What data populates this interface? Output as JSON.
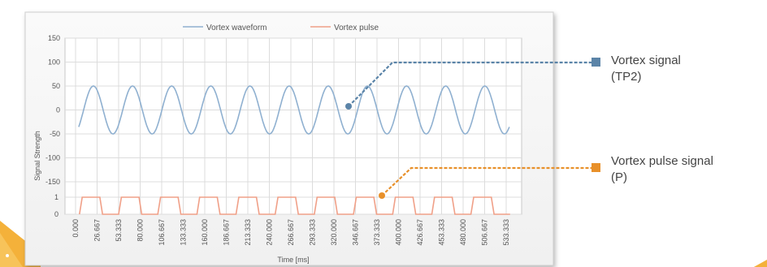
{
  "chart_data": {
    "type": "line",
    "legend": [
      {
        "name": "Vortex waveform",
        "color": "#8fb0d0"
      },
      {
        "name": "Vortex pulse",
        "color": "#f0a088"
      }
    ],
    "ylabel": "Signal Strength",
    "xlabel": "Time [ms]",
    "y_ticks_upper": [
      "150",
      "100",
      "50",
      "0",
      "-50",
      "-100",
      "-150"
    ],
    "y_ticks_lower": [
      "1",
      "0"
    ],
    "x_ticks": [
      "0.000",
      "26.667",
      "53.333",
      "80.000",
      "106.667",
      "133.333",
      "160.000",
      "186.667",
      "213.333",
      "240.000",
      "266.667",
      "293.333",
      "320.000",
      "346.667",
      "373.333",
      "400.000",
      "426.667",
      "453.333",
      "480.000",
      "506.667",
      "533.333"
    ],
    "xlim": [
      0,
      533.333
    ],
    "ylim_waveform": [
      -150,
      150
    ],
    "ylim_pulse": [
      0,
      1
    ],
    "grid": true,
    "legend_placement": "top",
    "series": [
      {
        "name": "Vortex waveform",
        "amplitude": 50,
        "period_ms": 48.485,
        "cycles": 11
      },
      {
        "name": "Vortex pulse",
        "high": 1,
        "low": 0,
        "period_ms": 48.485,
        "cycles": 11
      }
    ]
  },
  "callouts": [
    {
      "label_line1": "Vortex signal",
      "label_line2": "(TP2)",
      "color": "#5b84a8"
    },
    {
      "label_line1": "Vortex pulse signal",
      "label_line2": "(P)",
      "color": "#e8902a"
    }
  ]
}
